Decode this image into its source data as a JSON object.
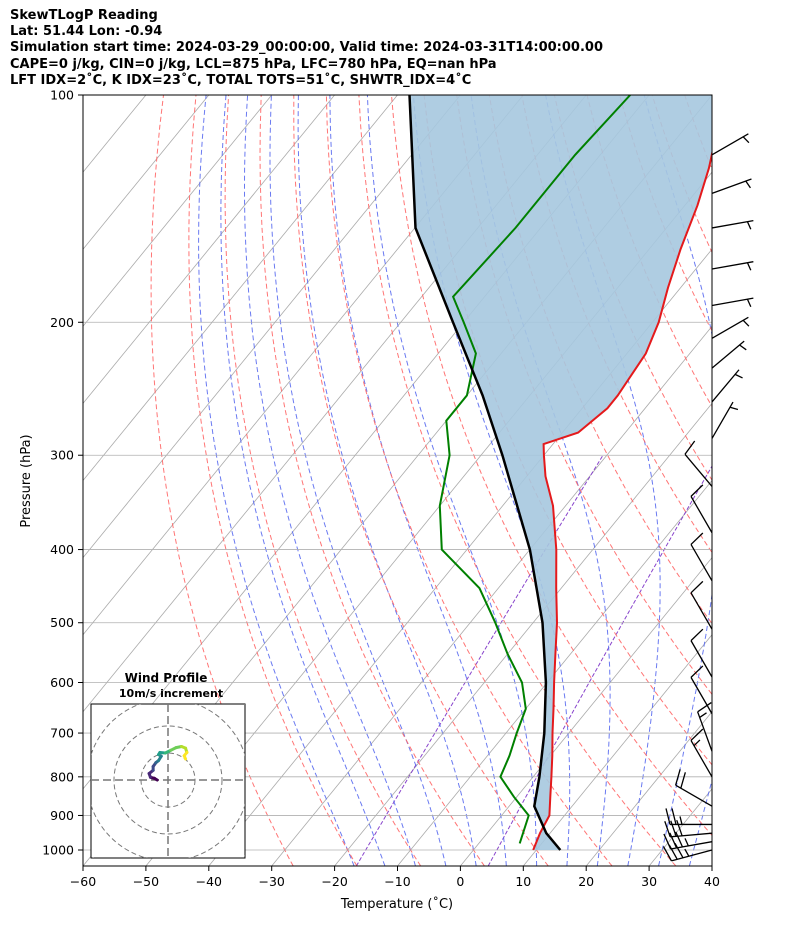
{
  "header": {
    "line1": "SkewTLogP Reading",
    "line2": "Lat: 51.44   Lon: -0.94",
    "line3": "Simulation start time: 2024-03-29_00:00:00, Valid time: 2024-03-31T14:00:00.00",
    "line4": "CAPE=0 j/kg, CIN=0 j/kg, LCL=875 hPa, LFC=780 hPa, EQ=nan hPa",
    "line5": "LFT IDX=2˚C, K IDX=23˚C, TOTAL TOTS=51˚C, SHWTR_IDX=4˚C"
  },
  "chart_data": {
    "type": "skewt",
    "xlabel": "Temperature (˚C)",
    "ylabel": "Pressure (hPa)",
    "xlim": [
      -60,
      40
    ],
    "ylim": [
      1050,
      100
    ],
    "x_ticks": [
      -60,
      -50,
      -40,
      -30,
      -20,
      -10,
      0,
      10,
      20,
      30,
      40
    ],
    "x_tick_labels": [
      "−60",
      "−50",
      "−40",
      "−30",
      "−20",
      "−10",
      "0",
      "10",
      "20",
      "30",
      "40"
    ],
    "y_ticks": [
      100,
      200,
      300,
      400,
      500,
      600,
      700,
      800,
      900,
      1000
    ],
    "y_tick_labels": [
      "100",
      "200",
      "300",
      "400",
      "500",
      "600",
      "700",
      "800",
      "900",
      "1000"
    ],
    "grid": true,
    "colors": {
      "temperature": "#e41a1c",
      "dewpoint": "#008000",
      "parcel": "#000000",
      "shade": "#a6c8df",
      "dry_adiabat": "#ff6666",
      "moist_adiabat": "#5a6cf0",
      "mixing_ratio": "#8844cc",
      "isotherm": "#aaaaaa"
    },
    "temperature_profile": [
      {
        "p": 1000,
        "t": 9.5
      },
      {
        "p": 950,
        "t": 8.4
      },
      {
        "p": 900,
        "t": 7.6
      },
      {
        "p": 850,
        "t": 5.3
      },
      {
        "p": 800,
        "t": 2.9
      },
      {
        "p": 750,
        "t": 0.3
      },
      {
        "p": 700,
        "t": -2.6
      },
      {
        "p": 650,
        "t": -5.6
      },
      {
        "p": 600,
        "t": -8.9
      },
      {
        "p": 550,
        "t": -12.4
      },
      {
        "p": 500,
        "t": -16.2
      },
      {
        "p": 450,
        "t": -20.8
      },
      {
        "p": 400,
        "t": -25.8
      },
      {
        "p": 350,
        "t": -32.0
      },
      {
        "p": 320,
        "t": -37.0
      },
      {
        "p": 300,
        "t": -40.0
      },
      {
        "p": 290,
        "t": -41.5
      },
      {
        "p": 280,
        "t": -37.5
      },
      {
        "p": 260,
        "t": -36.0
      },
      {
        "p": 250,
        "t": -36.0
      },
      {
        "p": 220,
        "t": -37.0
      },
      {
        "p": 200,
        "t": -39.0
      },
      {
        "p": 180,
        "t": -42.0
      },
      {
        "p": 160,
        "t": -45.0
      },
      {
        "p": 140,
        "t": -48.0
      },
      {
        "p": 125,
        "t": -51.0
      },
      {
        "p": 110,
        "t": -55.0
      },
      {
        "p": 100,
        "t": -57.5
      }
    ],
    "dewpoint_profile": [
      {
        "p": 980,
        "t": 6.5
      },
      {
        "p": 900,
        "t": 4.3
      },
      {
        "p": 850,
        "t": -0.5
      },
      {
        "p": 800,
        "t": -5.2
      },
      {
        "p": 750,
        "t": -6.5
      },
      {
        "p": 700,
        "t": -8.3
      },
      {
        "p": 650,
        "t": -10.0
      },
      {
        "p": 600,
        "t": -14.0
      },
      {
        "p": 550,
        "t": -20.0
      },
      {
        "p": 500,
        "t": -26.0
      },
      {
        "p": 450,
        "t": -33.0
      },
      {
        "p": 400,
        "t": -44.0
      },
      {
        "p": 350,
        "t": -50.0
      },
      {
        "p": 300,
        "t": -55.0
      },
      {
        "p": 270,
        "t": -60.0
      },
      {
        "p": 250,
        "t": -60.0
      },
      {
        "p": 220,
        "t": -64.0
      },
      {
        "p": 200,
        "t": -70.0
      },
      {
        "p": 185,
        "t": -75.0
      },
      {
        "p": 150,
        "t": -74.0
      },
      {
        "p": 120,
        "t": -74.0
      },
      {
        "p": 100,
        "t": -73.0
      }
    ],
    "parcel_profile": [
      {
        "p": 1000,
        "t": 13.8
      },
      {
        "p": 950,
        "t": 9.4
      },
      {
        "p": 875,
        "t": 4.0
      },
      {
        "p": 800,
        "t": 1.0
      },
      {
        "p": 700,
        "t": -3.9
      },
      {
        "p": 600,
        "t": -10.2
      },
      {
        "p": 500,
        "t": -18.5
      },
      {
        "p": 400,
        "t": -30.0
      },
      {
        "p": 300,
        "t": -46.6
      },
      {
        "p": 250,
        "t": -57.5
      },
      {
        "p": 200,
        "t": -71.7
      },
      {
        "p": 150,
        "t": -89.9
      },
      {
        "p": 100,
        "t": -108.1
      }
    ],
    "wind_barbs": [
      {
        "p": 1000,
        "speed_kt": 35,
        "dir_deg": 255
      },
      {
        "p": 975,
        "speed_kt": 35,
        "dir_deg": 260
      },
      {
        "p": 950,
        "speed_kt": 30,
        "dir_deg": 265
      },
      {
        "p": 925,
        "speed_kt": 25,
        "dir_deg": 270
      },
      {
        "p": 875,
        "speed_kt": 20,
        "dir_deg": 300
      },
      {
        "p": 800,
        "speed_kt": 15,
        "dir_deg": 330
      },
      {
        "p": 740,
        "speed_kt": 15,
        "dir_deg": 340
      },
      {
        "p": 660,
        "speed_kt": 10,
        "dir_deg": 330
      },
      {
        "p": 590,
        "speed_kt": 10,
        "dir_deg": 330
      },
      {
        "p": 510,
        "speed_kt": 10,
        "dir_deg": 330
      },
      {
        "p": 440,
        "speed_kt": 10,
        "dir_deg": 330
      },
      {
        "p": 380,
        "speed_kt": 10,
        "dir_deg": 330
      },
      {
        "p": 330,
        "speed_kt": 10,
        "dir_deg": 320
      },
      {
        "p": 285,
        "speed_kt": 5,
        "dir_deg": 30
      },
      {
        "p": 255,
        "speed_kt": 5,
        "dir_deg": 40
      },
      {
        "p": 230,
        "speed_kt": 5,
        "dir_deg": 50
      },
      {
        "p": 210,
        "speed_kt": 5,
        "dir_deg": 60
      },
      {
        "p": 190,
        "speed_kt": 5,
        "dir_deg": 80
      },
      {
        "p": 170,
        "speed_kt": 5,
        "dir_deg": 80
      },
      {
        "p": 150,
        "speed_kt": 5,
        "dir_deg": 80
      },
      {
        "p": 135,
        "speed_kt": 5,
        "dir_deg": 70
      },
      {
        "p": 120,
        "speed_kt": 5,
        "dir_deg": 60
      }
    ],
    "hodograph": {
      "title": "Wind Profile",
      "subtitle": "10m/s increment",
      "rings_ms": [
        10,
        20,
        30,
        40
      ],
      "points": [
        {
          "u": -4.0,
          "v": 0.0
        },
        {
          "u": -5.0,
          "v": 0.6
        },
        {
          "u": -6.5,
          "v": 1.0
        },
        {
          "u": -7.0,
          "v": 2.4
        },
        {
          "u": -5.5,
          "v": 3.6
        },
        {
          "u": -5.5,
          "v": 5.0
        },
        {
          "u": -4.5,
          "v": 6.4
        },
        {
          "u": -3.5,
          "v": 7.2
        },
        {
          "u": -2.5,
          "v": 8.8
        },
        {
          "u": -3.5,
          "v": 9.4
        },
        {
          "u": -3.0,
          "v": 10.2
        },
        {
          "u": -1.0,
          "v": 10.0
        },
        {
          "u": 1.0,
          "v": 11.0
        },
        {
          "u": 3.0,
          "v": 12.0
        },
        {
          "u": 5.0,
          "v": 12.4
        },
        {
          "u": 6.5,
          "v": 11.8
        },
        {
          "u": 7.0,
          "v": 10.2
        },
        {
          "u": 6.0,
          "v": 9.0
        },
        {
          "u": 6.5,
          "v": 7.8
        }
      ]
    }
  }
}
